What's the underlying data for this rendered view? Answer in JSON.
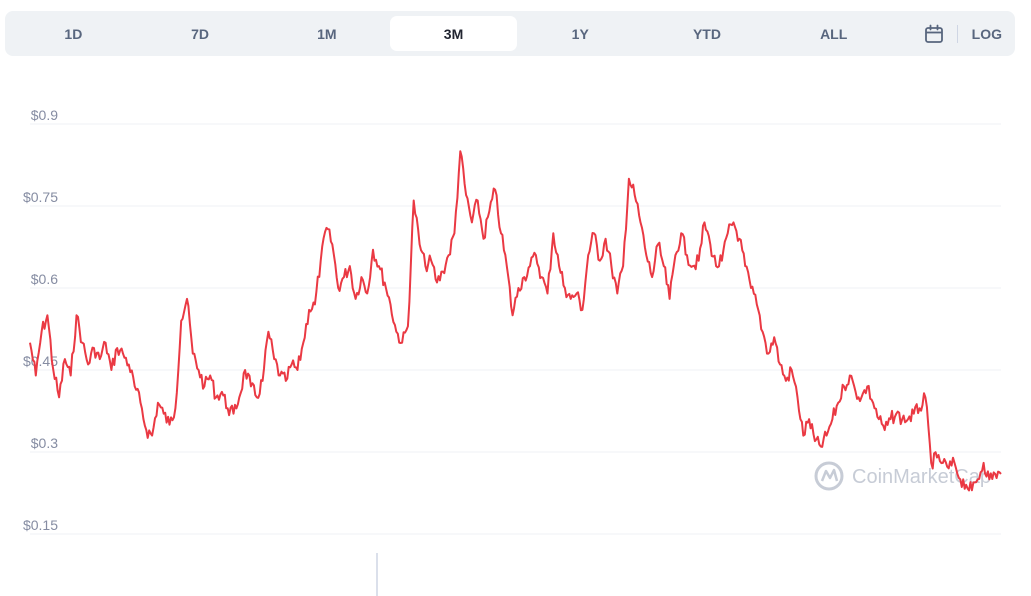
{
  "range_tabs": [
    {
      "label": "1D"
    },
    {
      "label": "7D"
    },
    {
      "label": "1M"
    },
    {
      "label": "3M"
    },
    {
      "label": "1Y"
    },
    {
      "label": "YTD"
    },
    {
      "label": "ALL"
    }
  ],
  "active_range": "3M",
  "calendar_icon": "calendar-icon",
  "log_label": "LOG",
  "watermark": "CoinMarketCap",
  "colors": {
    "line": "#ea3943",
    "toolbar_bg": "#eff2f5",
    "tick": "#858ca2",
    "grid": "#eff2f5"
  },
  "chart_data": {
    "type": "line",
    "title": "",
    "xlabel": "",
    "ylabel": "",
    "ylim": [
      0.15,
      0.9
    ],
    "yticks": [
      "$0.9",
      "$0.75",
      "$0.6",
      "$0.45",
      "$0.3",
      "$0.15"
    ],
    "ytick_values": [
      0.9,
      0.75,
      0.6,
      0.45,
      0.3,
      0.15
    ],
    "grid": true,
    "series": [
      {
        "color": "#ea3943",
        "values": [
          0.5,
          0.44,
          0.52,
          0.55,
          0.45,
          0.4,
          0.47,
          0.44,
          0.55,
          0.5,
          0.46,
          0.49,
          0.47,
          0.5,
          0.45,
          0.49,
          0.48,
          0.46,
          0.42,
          0.39,
          0.34,
          0.33,
          0.39,
          0.37,
          0.35,
          0.38,
          0.54,
          0.58,
          0.48,
          0.45,
          0.42,
          0.44,
          0.4,
          0.41,
          0.38,
          0.37,
          0.4,
          0.45,
          0.42,
          0.4,
          0.43,
          0.52,
          0.47,
          0.44,
          0.43,
          0.46,
          0.45,
          0.5,
          0.56,
          0.57,
          0.65,
          0.71,
          0.68,
          0.6,
          0.62,
          0.64,
          0.58,
          0.62,
          0.59,
          0.67,
          0.64,
          0.61,
          0.57,
          0.52,
          0.5,
          0.53,
          0.76,
          0.68,
          0.64,
          0.65,
          0.61,
          0.63,
          0.66,
          0.7,
          0.85,
          0.77,
          0.72,
          0.76,
          0.69,
          0.74,
          0.78,
          0.7,
          0.64,
          0.55,
          0.6,
          0.62,
          0.64,
          0.66,
          0.62,
          0.59,
          0.7,
          0.64,
          0.6,
          0.58,
          0.59,
          0.56,
          0.66,
          0.7,
          0.65,
          0.69,
          0.64,
          0.59,
          0.64,
          0.8,
          0.77,
          0.72,
          0.66,
          0.62,
          0.68,
          0.64,
          0.58,
          0.66,
          0.7,
          0.66,
          0.64,
          0.65,
          0.72,
          0.68,
          0.64,
          0.65,
          0.7,
          0.72,
          0.69,
          0.64,
          0.6,
          0.57,
          0.52,
          0.48,
          0.51,
          0.46,
          0.43,
          0.45,
          0.4,
          0.33,
          0.36,
          0.32,
          0.31,
          0.33,
          0.36,
          0.39,
          0.42,
          0.44,
          0.41,
          0.4,
          0.42,
          0.39,
          0.36,
          0.34,
          0.36,
          0.37,
          0.36,
          0.36,
          0.37,
          0.38,
          0.4,
          0.28,
          0.29,
          0.28,
          0.27,
          0.28,
          0.25,
          0.24,
          0.23,
          0.25,
          0.28,
          0.25,
          0.26,
          0.26
        ]
      }
    ]
  }
}
